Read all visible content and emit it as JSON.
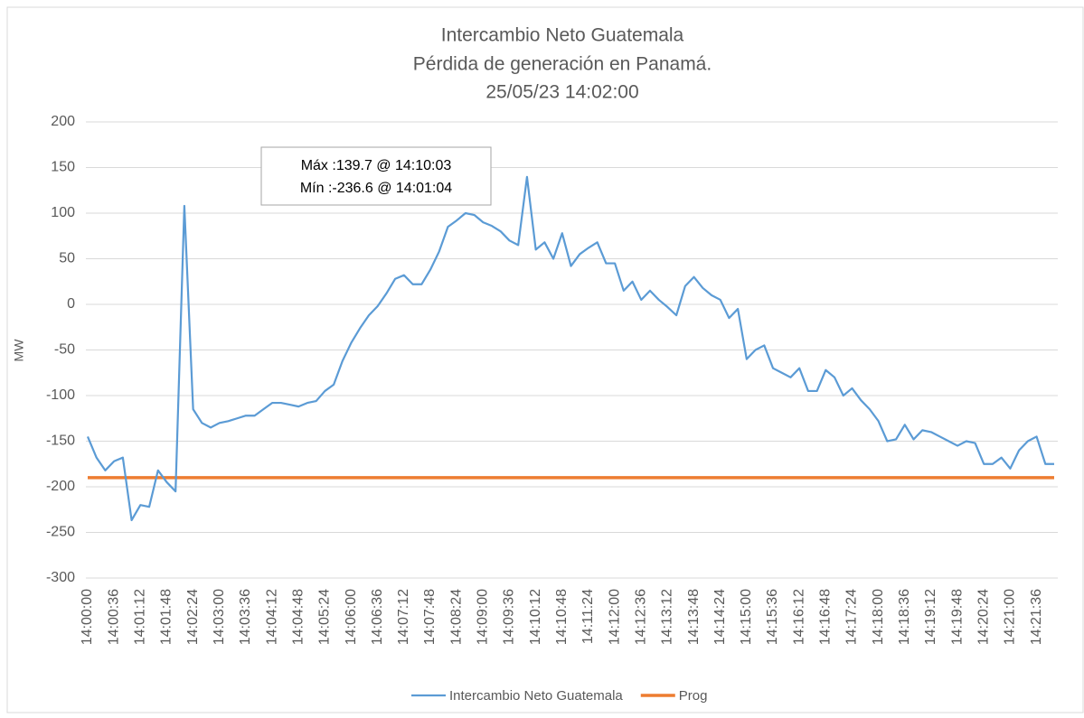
{
  "chart_data": {
    "type": "line",
    "title": [
      "Intercambio Neto Guatemala",
      "Pérdida de generación en Panamá.",
      "25/05/23 14:02:00"
    ],
    "y_label": "MW",
    "annotation": [
      "Máx :139.7 @ 14:10:03",
      "Mín :-236.6 @ 14:01:04"
    ],
    "categories": [
      "14:00:00",
      null,
      null,
      "14:00:36",
      null,
      null,
      "14:01:12",
      null,
      null,
      "14:01:48",
      null,
      null,
      "14:02:24",
      null,
      null,
      "14:03:00",
      null,
      null,
      "14:03:36",
      null,
      null,
      "14:04:12",
      null,
      null,
      "14:04:48",
      null,
      null,
      "14:05:24",
      null,
      null,
      "14:06:00",
      null,
      null,
      "14:06:36",
      null,
      null,
      "14:07:12",
      null,
      null,
      "14:07:48",
      null,
      null,
      "14:08:24",
      null,
      null,
      "14:09:00",
      null,
      null,
      "14:09:36",
      null,
      null,
      "14:10:12",
      null,
      null,
      "14:10:48",
      null,
      null,
      "14:11:24",
      null,
      null,
      "14:12:00",
      null,
      null,
      "14:12:36",
      null,
      null,
      "14:13:12",
      null,
      null,
      "14:13:48",
      null,
      null,
      "14:14:24",
      null,
      null,
      "14:15:00",
      null,
      null,
      "14:15:36",
      null,
      null,
      "14:16:12",
      null,
      null,
      "14:16:48",
      null,
      null,
      "14:17:24",
      null,
      null,
      "14:18:00",
      null,
      null,
      "14:18:36",
      null,
      null,
      "14:19:12",
      null,
      null,
      "14:19:48",
      null,
      null,
      "14:20:24",
      null,
      null,
      "14:21:00",
      null,
      null,
      "14:21:36",
      null,
      null
    ],
    "series": [
      {
        "name": "Intercambio Neto Guatemala",
        "color": "#5b9bd5",
        "values": [
          -145,
          -168,
          -182,
          -172,
          -168,
          -236.6,
          -220,
          -222,
          -182,
          -195,
          -205,
          108,
          -115,
          -130,
          -135,
          -130,
          -128,
          -125,
          -122,
          -122,
          -115,
          -108,
          -108,
          -110,
          -112,
          -108,
          -106,
          -95,
          -88,
          -62,
          -42,
          -26,
          -12,
          -2,
          12,
          28,
          32,
          22,
          22,
          38,
          58,
          85,
          92,
          100,
          98,
          90,
          86,
          80,
          70,
          65,
          139.7,
          60,
          68,
          50,
          78,
          42,
          55,
          62,
          68,
          45,
          45,
          15,
          25,
          5,
          15,
          5,
          -3,
          -12,
          20,
          30,
          18,
          10,
          5,
          -15,
          -5,
          -60,
          -50,
          -45,
          -70,
          -75,
          -80,
          -70,
          -95,
          -95,
          -72,
          -80,
          -100,
          -92,
          -105,
          -115,
          -128,
          -150,
          -148,
          -132,
          -148,
          -138,
          -140,
          -145,
          -150,
          -155,
          -150,
          -152,
          -175,
          -175,
          -168,
          -180,
          -160,
          -150,
          -145,
          -175,
          -175
        ]
      },
      {
        "name": "Prog",
        "color": "#ed7d31",
        "values": [
          -190,
          -190,
          -190,
          -190,
          -190,
          -190,
          -190,
          -190,
          -190,
          -190,
          -190,
          -190,
          -190,
          -190,
          -190,
          -190,
          -190,
          -190,
          -190,
          -190,
          -190,
          -190,
          -190,
          -190,
          -190,
          -190,
          -190,
          -190,
          -190,
          -190,
          -190,
          -190,
          -190,
          -190,
          -190,
          -190,
          -190,
          -190,
          -190,
          -190,
          -190,
          -190,
          -190,
          -190,
          -190,
          -190,
          -190,
          -190,
          -190,
          -190,
          -190,
          -190,
          -190,
          -190,
          -190,
          -190,
          -190,
          -190,
          -190,
          -190,
          -190,
          -190,
          -190,
          -190,
          -190,
          -190,
          -190,
          -190,
          -190,
          -190,
          -190,
          -190,
          -190,
          -190,
          -190,
          -190,
          -190,
          -190,
          -190,
          -190,
          -190,
          -190,
          -190,
          -190,
          -190,
          -190,
          -190,
          -190,
          -190,
          -190,
          -190,
          -190,
          -190,
          -190,
          -190,
          -190,
          -190,
          -190,
          -190,
          -190,
          -190,
          -190,
          -190,
          -190,
          -190,
          -190,
          -190,
          -190,
          -190,
          -190,
          -190
        ]
      }
    ],
    "ylim": [
      -300,
      200
    ],
    "yticks": [
      -300,
      -250,
      -200,
      -150,
      -100,
      -50,
      0,
      50,
      100,
      150,
      200
    ],
    "grid": true
  }
}
